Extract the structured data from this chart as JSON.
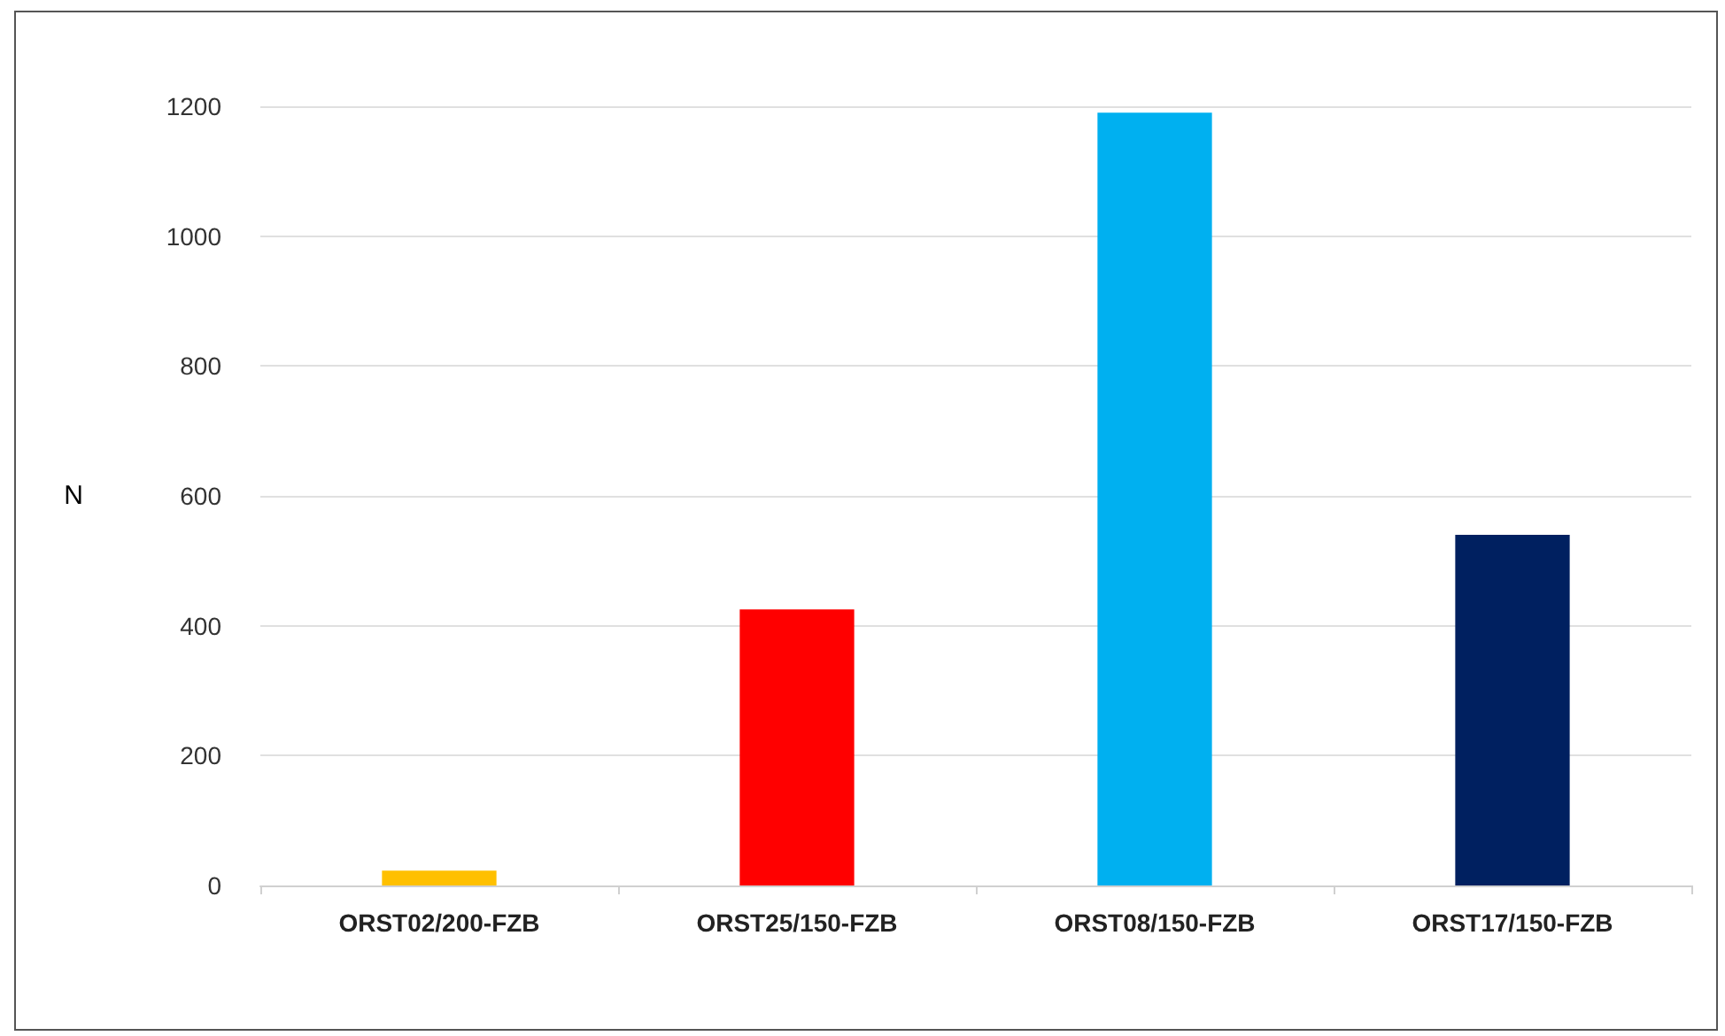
{
  "chart_data": {
    "type": "bar",
    "categories": [
      "ORST02/200-FZB",
      "ORST25/150-FZB",
      "ORST08/150-FZB",
      "ORST17/150-FZB"
    ],
    "values": [
      23,
      425,
      1190,
      540
    ],
    "colors": [
      "#ffc000",
      "#ff0000",
      "#00b0f0",
      "#002060"
    ],
    "ylabel": "N",
    "ylim": [
      0,
      1200
    ],
    "yticks": [
      0,
      200,
      400,
      600,
      800,
      1000,
      1200
    ],
    "grid": "y"
  }
}
